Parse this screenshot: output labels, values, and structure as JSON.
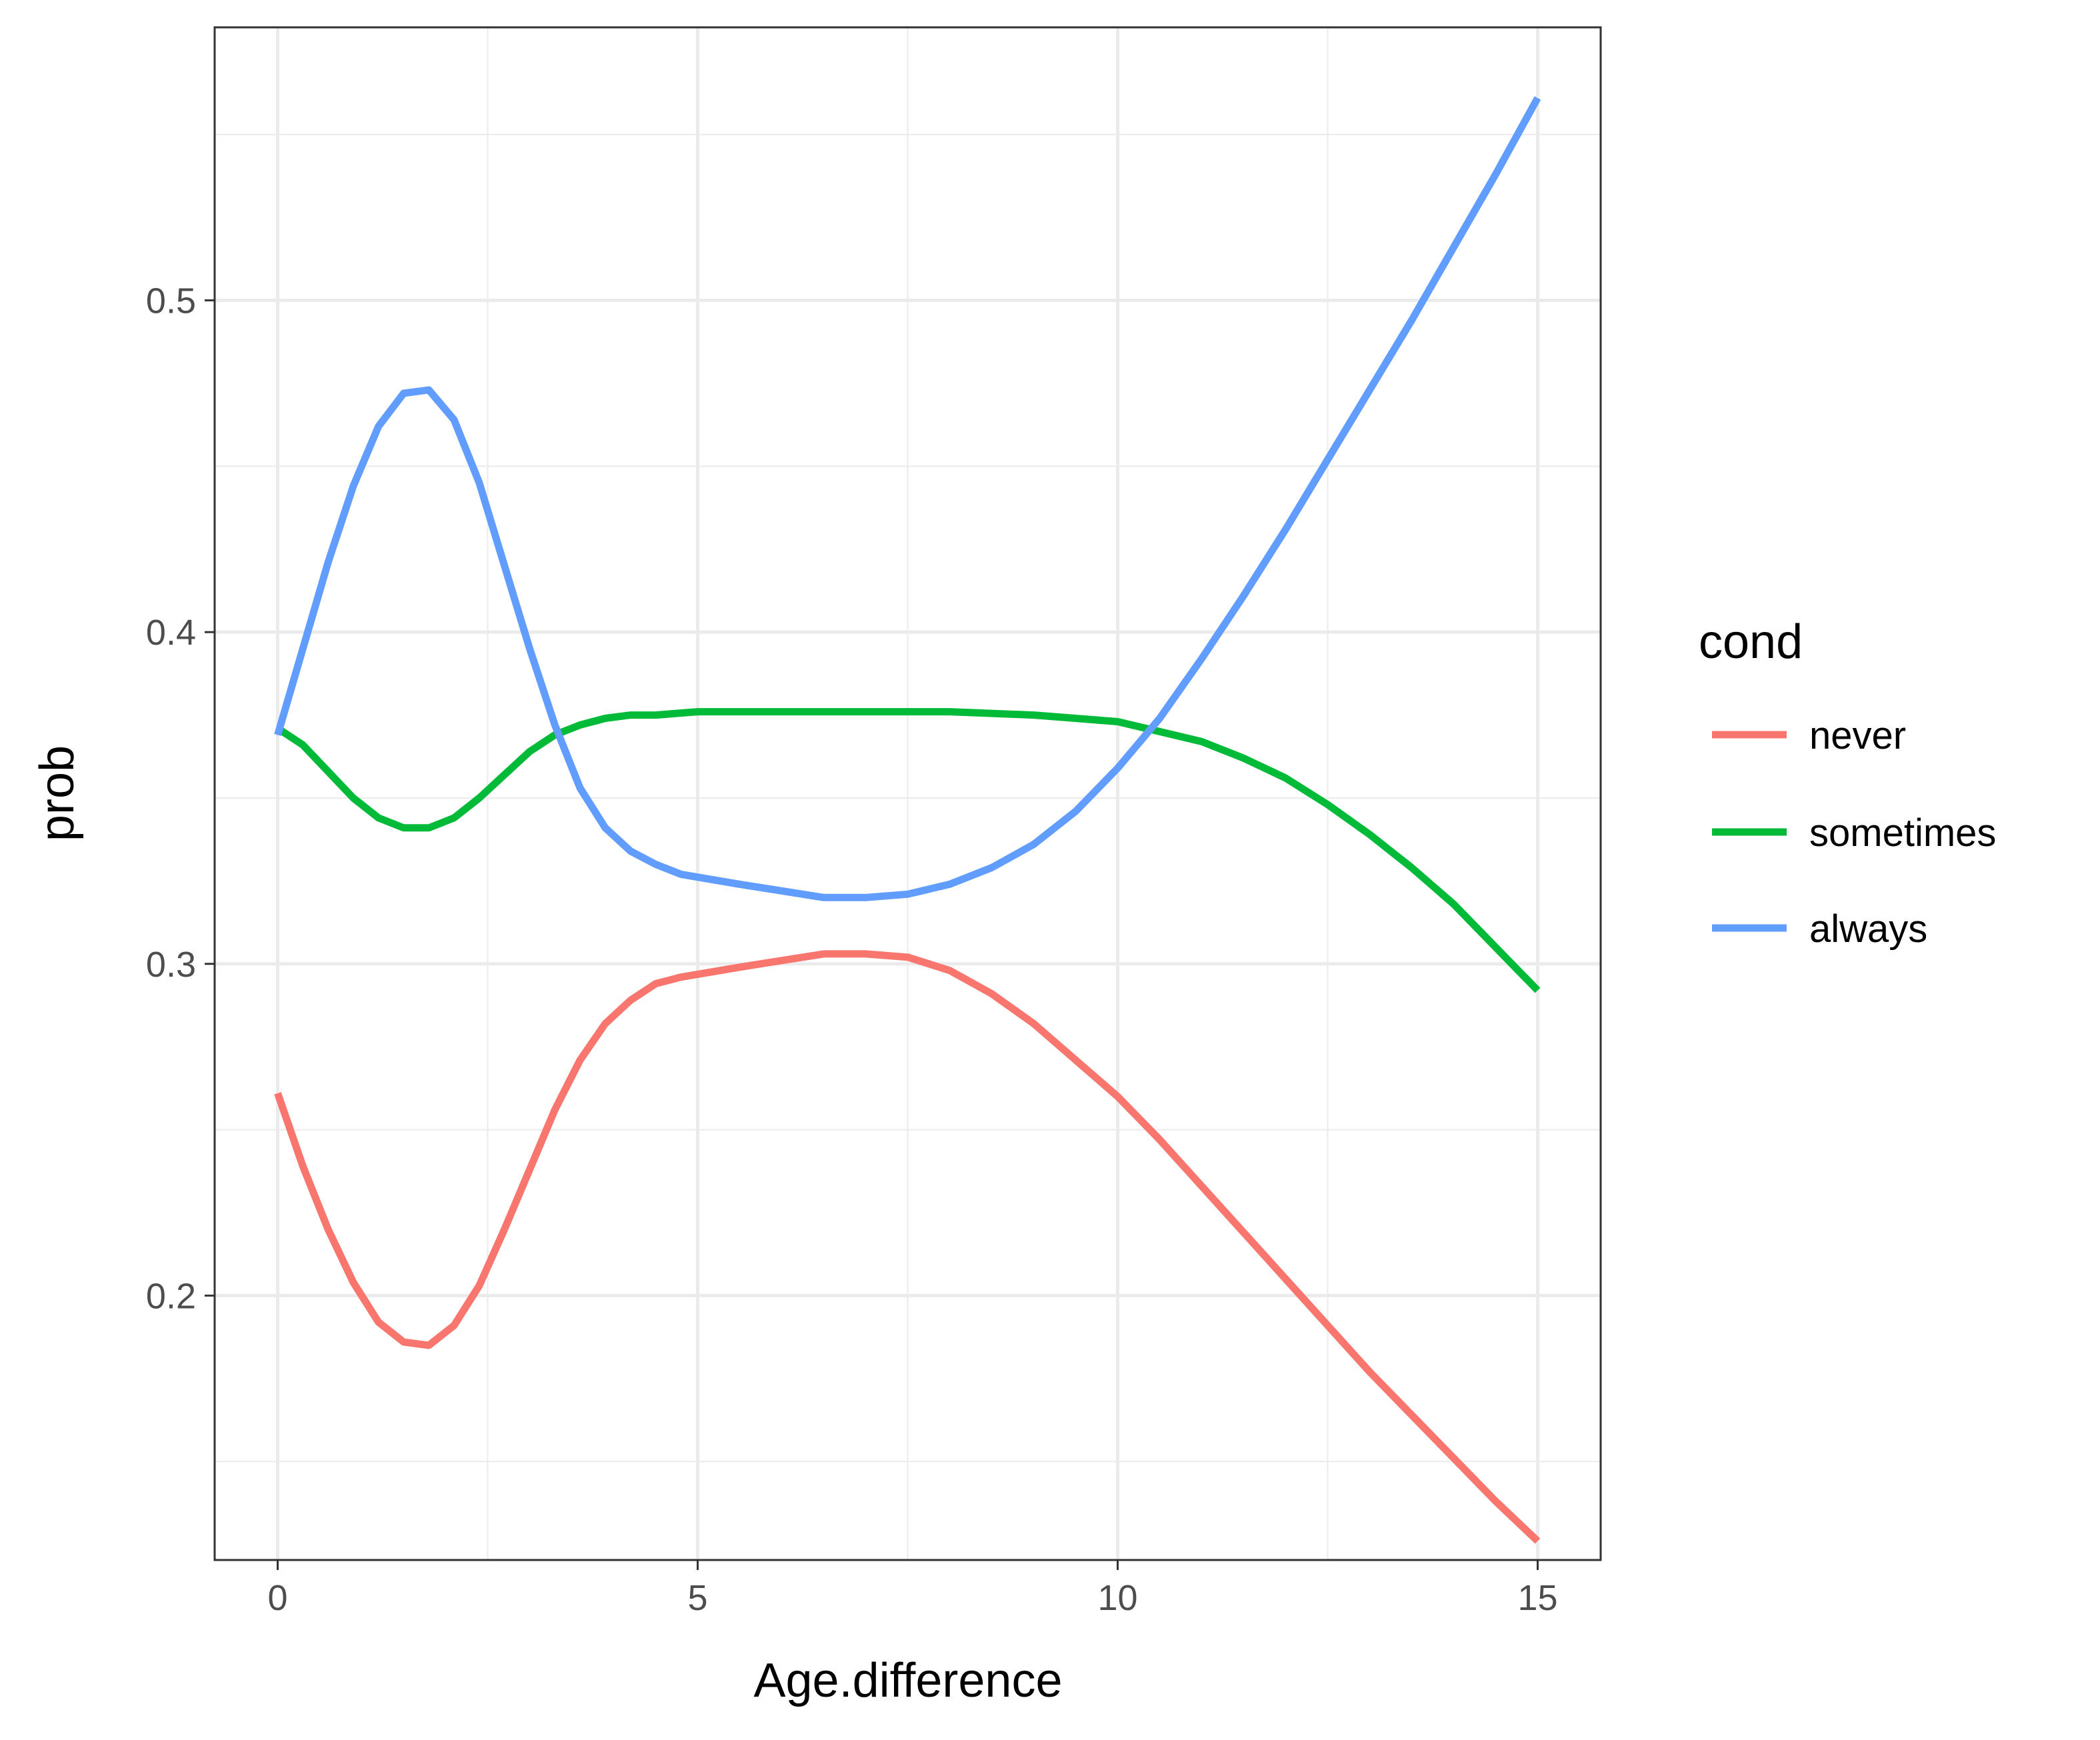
{
  "chart_data": {
    "type": "line",
    "title": "",
    "xlabel": "Age.difference",
    "ylabel": "prob",
    "xlim": [
      -0.75,
      15.75
    ],
    "ylim": [
      0.1203,
      0.5823
    ],
    "x_ticks": [
      0,
      5,
      10,
      15
    ],
    "x_tick_labels": [
      "0",
      "5",
      "10",
      "15"
    ],
    "y_ticks": [
      0.2,
      0.3,
      0.4,
      0.5
    ],
    "y_tick_labels": [
      "0.2",
      "0.3",
      "0.4",
      "0.5"
    ],
    "grid": true,
    "legend": {
      "title": "cond",
      "position": "right"
    },
    "series": [
      {
        "name": "never",
        "color": "#F8766D",
        "x": [
          0,
          0.3,
          0.6,
          0.9,
          1.2,
          1.5,
          1.8,
          2.1,
          2.4,
          2.7,
          3.0,
          3.3,
          3.6,
          3.9,
          4.2,
          4.5,
          4.8,
          5.5,
          6.0,
          6.5,
          7.0,
          7.5,
          8.0,
          8.5,
          9.0,
          9.5,
          10.0,
          10.5,
          11.0,
          11.5,
          12.0,
          12.5,
          13.0,
          13.5,
          14.0,
          14.5,
          15.0
        ],
        "y": [
          0.261,
          0.239,
          0.22,
          0.204,
          0.192,
          0.186,
          0.185,
          0.191,
          0.203,
          0.22,
          0.238,
          0.256,
          0.271,
          0.282,
          0.289,
          0.294,
          0.296,
          0.299,
          0.301,
          0.303,
          0.303,
          0.302,
          0.298,
          0.291,
          0.282,
          0.271,
          0.26,
          0.247,
          0.233,
          0.219,
          0.205,
          0.191,
          0.177,
          0.164,
          0.151,
          0.138,
          0.126
        ]
      },
      {
        "name": "sometimes",
        "color": "#00BA38",
        "x": [
          0,
          0.3,
          0.6,
          0.9,
          1.2,
          1.5,
          1.8,
          2.1,
          2.4,
          2.7,
          3.0,
          3.3,
          3.6,
          3.9,
          4.2,
          4.5,
          5.0,
          6.0,
          7.0,
          8.0,
          9.0,
          9.5,
          10.0,
          10.5,
          11.0,
          11.5,
          12.0,
          12.5,
          13.0,
          13.5,
          14.0,
          14.5,
          15.0
        ],
        "y": [
          0.371,
          0.366,
          0.358,
          0.35,
          0.344,
          0.341,
          0.341,
          0.344,
          0.35,
          0.357,
          0.364,
          0.369,
          0.372,
          0.374,
          0.375,
          0.375,
          0.376,
          0.376,
          0.376,
          0.376,
          0.375,
          0.374,
          0.373,
          0.37,
          0.367,
          0.362,
          0.356,
          0.348,
          0.339,
          0.329,
          0.318,
          0.305,
          0.292
        ]
      },
      {
        "name": "always",
        "color": "#619CFF",
        "x": [
          0,
          0.3,
          0.6,
          0.9,
          1.2,
          1.5,
          1.8,
          2.1,
          2.4,
          2.7,
          3.0,
          3.3,
          3.6,
          3.9,
          4.2,
          4.5,
          4.8,
          5.5,
          6.0,
          6.5,
          7.0,
          7.5,
          8.0,
          8.5,
          9.0,
          9.5,
          10.0,
          10.5,
          11.0,
          11.5,
          12.0,
          12.5,
          13.0,
          13.5,
          14.0,
          14.5,
          15.0
        ],
        "y": [
          0.369,
          0.395,
          0.421,
          0.444,
          0.462,
          0.472,
          0.473,
          0.464,
          0.445,
          0.42,
          0.395,
          0.372,
          0.353,
          0.341,
          0.334,
          0.33,
          0.327,
          0.324,
          0.322,
          0.32,
          0.32,
          0.321,
          0.324,
          0.329,
          0.336,
          0.346,
          0.359,
          0.374,
          0.392,
          0.411,
          0.431,
          0.452,
          0.473,
          0.494,
          0.516,
          0.538,
          0.561
        ]
      }
    ]
  }
}
